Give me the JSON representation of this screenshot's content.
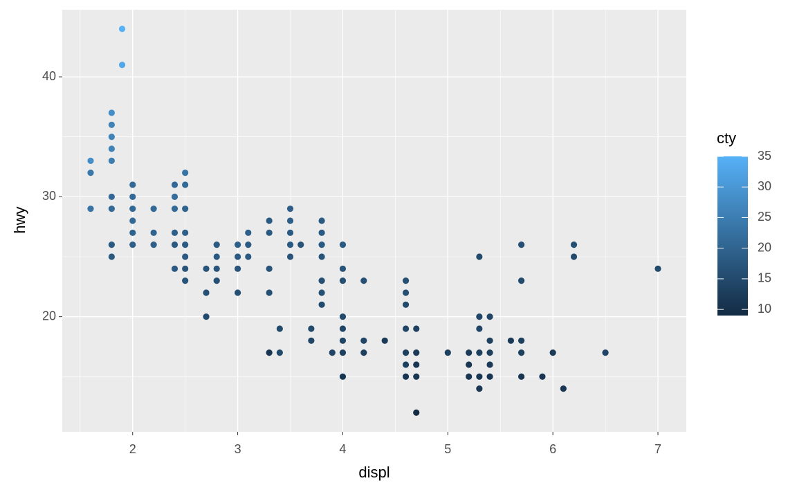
{
  "chart_data": {
    "type": "scatter",
    "x_label": "displ",
    "y_label": "hwy",
    "color_label": "cty",
    "xlim": [
      1.33,
      7.27
    ],
    "xticks": [
      2,
      3,
      4,
      5,
      6,
      7
    ],
    "xminorticks": [
      1.5,
      2.5,
      3.5,
      4.5,
      5.5,
      6.5
    ],
    "ylim": [
      10.4,
      45.6
    ],
    "yticks": [
      20,
      30,
      40
    ],
    "yminorticks": [
      15,
      25,
      35
    ],
    "clim": [
      9,
      35
    ],
    "cticks": [
      10,
      15,
      20,
      25,
      30,
      35
    ],
    "color_range": [
      "#132B43",
      "#56B1F7"
    ],
    "panel_color": "#ebebeb",
    "grid": true,
    "x": [
      1.6,
      1.6,
      1.6,
      1.8,
      1.8,
      1.8,
      1.8,
      1.8,
      1.8,
      1.8,
      1.8,
      1.8,
      1.9,
      1.9,
      2.0,
      2.0,
      2.0,
      2.0,
      2.0,
      2.0,
      2.2,
      2.2,
      2.2,
      2.4,
      2.4,
      2.4,
      2.4,
      2.4,
      2.4,
      2.5,
      2.5,
      2.5,
      2.5,
      2.5,
      2.5,
      2.5,
      2.5,
      2.7,
      2.7,
      2.7,
      2.8,
      2.8,
      2.8,
      2.8,
      3.0,
      3.0,
      3.0,
      3.0,
      3.1,
      3.1,
      3.1,
      3.3,
      3.3,
      3.3,
      3.3,
      3.3,
      3.4,
      3.4,
      3.5,
      3.5,
      3.5,
      3.5,
      3.5,
      3.6,
      3.7,
      3.7,
      3.8,
      3.8,
      3.8,
      3.8,
      3.8,
      3.8,
      3.8,
      3.9,
      4.0,
      4.0,
      4.0,
      4.0,
      4.0,
      4.0,
      4.0,
      4.0,
      4.2,
      4.2,
      4.2,
      4.4,
      4.6,
      4.6,
      4.6,
      4.6,
      4.6,
      4.6,
      4.6,
      4.7,
      4.7,
      4.7,
      4.7,
      4.7,
      5.0,
      5.2,
      5.2,
      5.2,
      5.3,
      5.3,
      5.3,
      5.3,
      5.3,
      5.3,
      5.4,
      5.4,
      5.4,
      5.4,
      5.4,
      5.6,
      5.7,
      5.7,
      5.7,
      5.7,
      5.7,
      5.9,
      6.0,
      6.1,
      6.2,
      6.2,
      6.5,
      7.0
    ],
    "values": [
      33,
      32,
      29,
      37,
      36,
      35,
      34,
      33,
      30,
      29,
      26,
      25,
      44,
      41,
      31,
      30,
      29,
      28,
      27,
      26,
      29,
      27,
      26,
      31,
      30,
      29,
      27,
      26,
      24,
      32,
      31,
      29,
      27,
      26,
      25,
      24,
      23,
      24,
      22,
      20,
      26,
      25,
      24,
      23,
      26,
      25,
      24,
      22,
      27,
      26,
      25,
      28,
      27,
      24,
      22,
      17,
      19,
      17,
      29,
      28,
      27,
      26,
      25,
      26,
      19,
      18,
      28,
      27,
      26,
      25,
      23,
      22,
      21,
      17,
      26,
      24,
      23,
      20,
      19,
      18,
      17,
      15,
      23,
      18,
      17,
      18,
      23,
      22,
      21,
      19,
      17,
      16,
      15,
      19,
      17,
      16,
      15,
      12,
      17,
      17,
      16,
      15,
      25,
      20,
      19,
      17,
      15,
      14,
      20,
      18,
      17,
      16,
      15,
      18,
      26,
      23,
      18,
      17,
      15,
      15,
      17,
      14,
      26,
      25,
      17,
      24
    ],
    "color_values": [
      28,
      24,
      23,
      28,
      26,
      26,
      26,
      25,
      21,
      21,
      18,
      18,
      35,
      33,
      21,
      21,
      21,
      21,
      20,
      19,
      21,
      20,
      19,
      21,
      22,
      21,
      19,
      18,
      18,
      23,
      21,
      20,
      19,
      18,
      18,
      17,
      17,
      17,
      16,
      15,
      18,
      18,
      17,
      16,
      19,
      18,
      17,
      16,
      19,
      18,
      18,
      18,
      18,
      17,
      16,
      11,
      15,
      15,
      19,
      19,
      18,
      18,
      17,
      17,
      15,
      14,
      18,
      18,
      18,
      17,
      16,
      16,
      15,
      14,
      18,
      17,
      16,
      15,
      14,
      14,
      13,
      11,
      16,
      14,
      13,
      12,
      16,
      16,
      15,
      14,
      13,
      13,
      11,
      13,
      12,
      11,
      11,
      9,
      13,
      12,
      11,
      11,
      15,
      14,
      14,
      13,
      11,
      11,
      14,
      13,
      13,
      12,
      11,
      12,
      16,
      15,
      13,
      13,
      11,
      11,
      12,
      11,
      16,
      15,
      14,
      15
    ]
  }
}
